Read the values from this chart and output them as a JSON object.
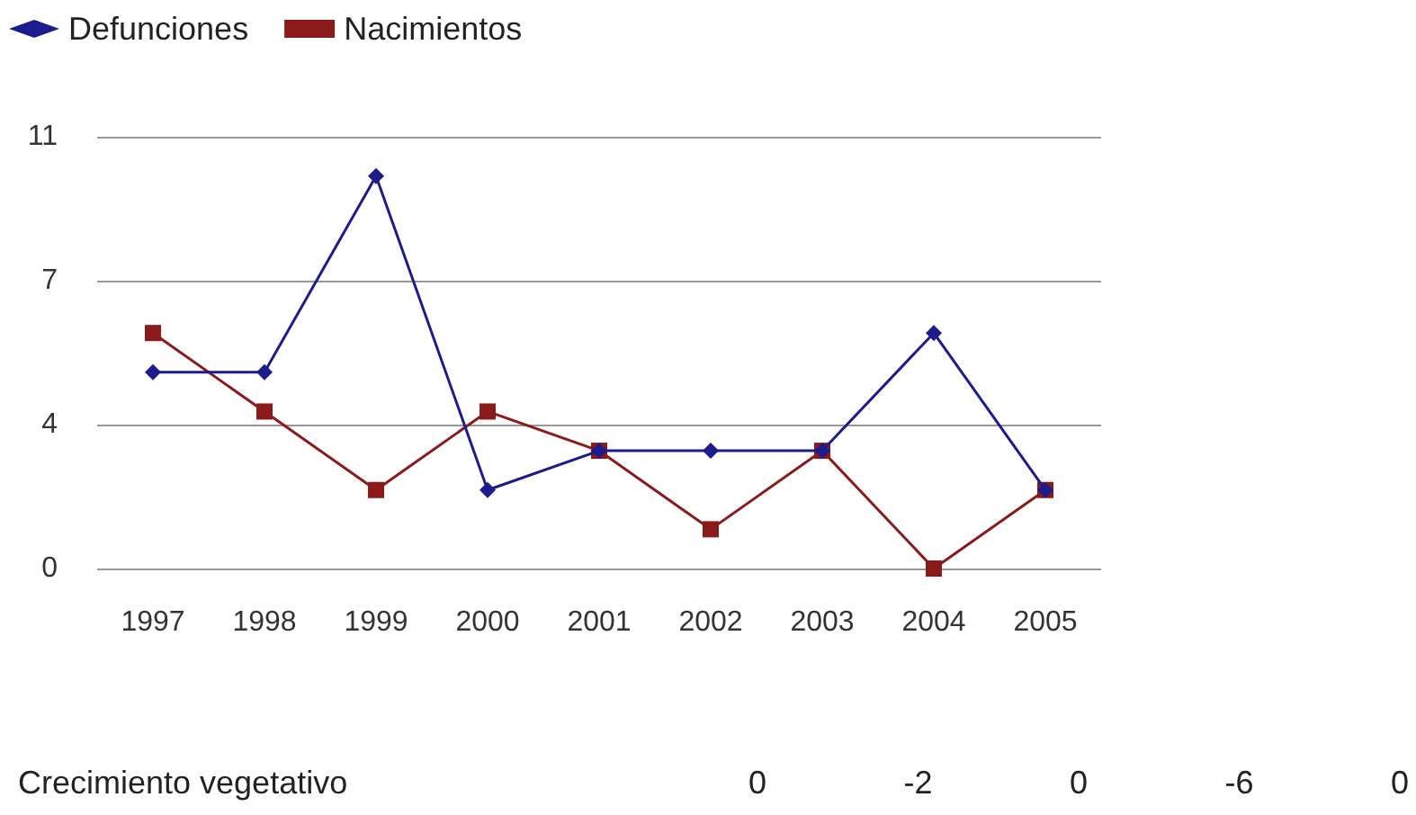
{
  "chart_data": {
    "type": "line",
    "categories": [
      "1997",
      "1998",
      "1999",
      "2000",
      "2001",
      "2002",
      "2003",
      "2004",
      "2005"
    ],
    "series": [
      {
        "name": "Defunciones",
        "color": "#1c1c8c",
        "marker": "diamond",
        "values": [
          5,
          5,
          10,
          2,
          3,
          3,
          3,
          6,
          2
        ]
      },
      {
        "name": "Nacimientos",
        "color": "#8b1a1a",
        "marker": "square",
        "values": [
          6,
          4,
          2,
          4,
          3,
          1,
          3,
          0,
          2
        ]
      }
    ],
    "ylim": [
      0,
      11
    ],
    "yticks": [
      0,
      {
        "value": 3.667,
        "label": "4"
      },
      {
        "value": 7.333,
        "label": "7"
      },
      11
    ],
    "grid": "y",
    "legend": "top left",
    "line_style": "solid",
    "annotations": [
      "Crecimiento vegetativo",
      "0",
      "-2",
      "0",
      "-6",
      "0"
    ]
  }
}
